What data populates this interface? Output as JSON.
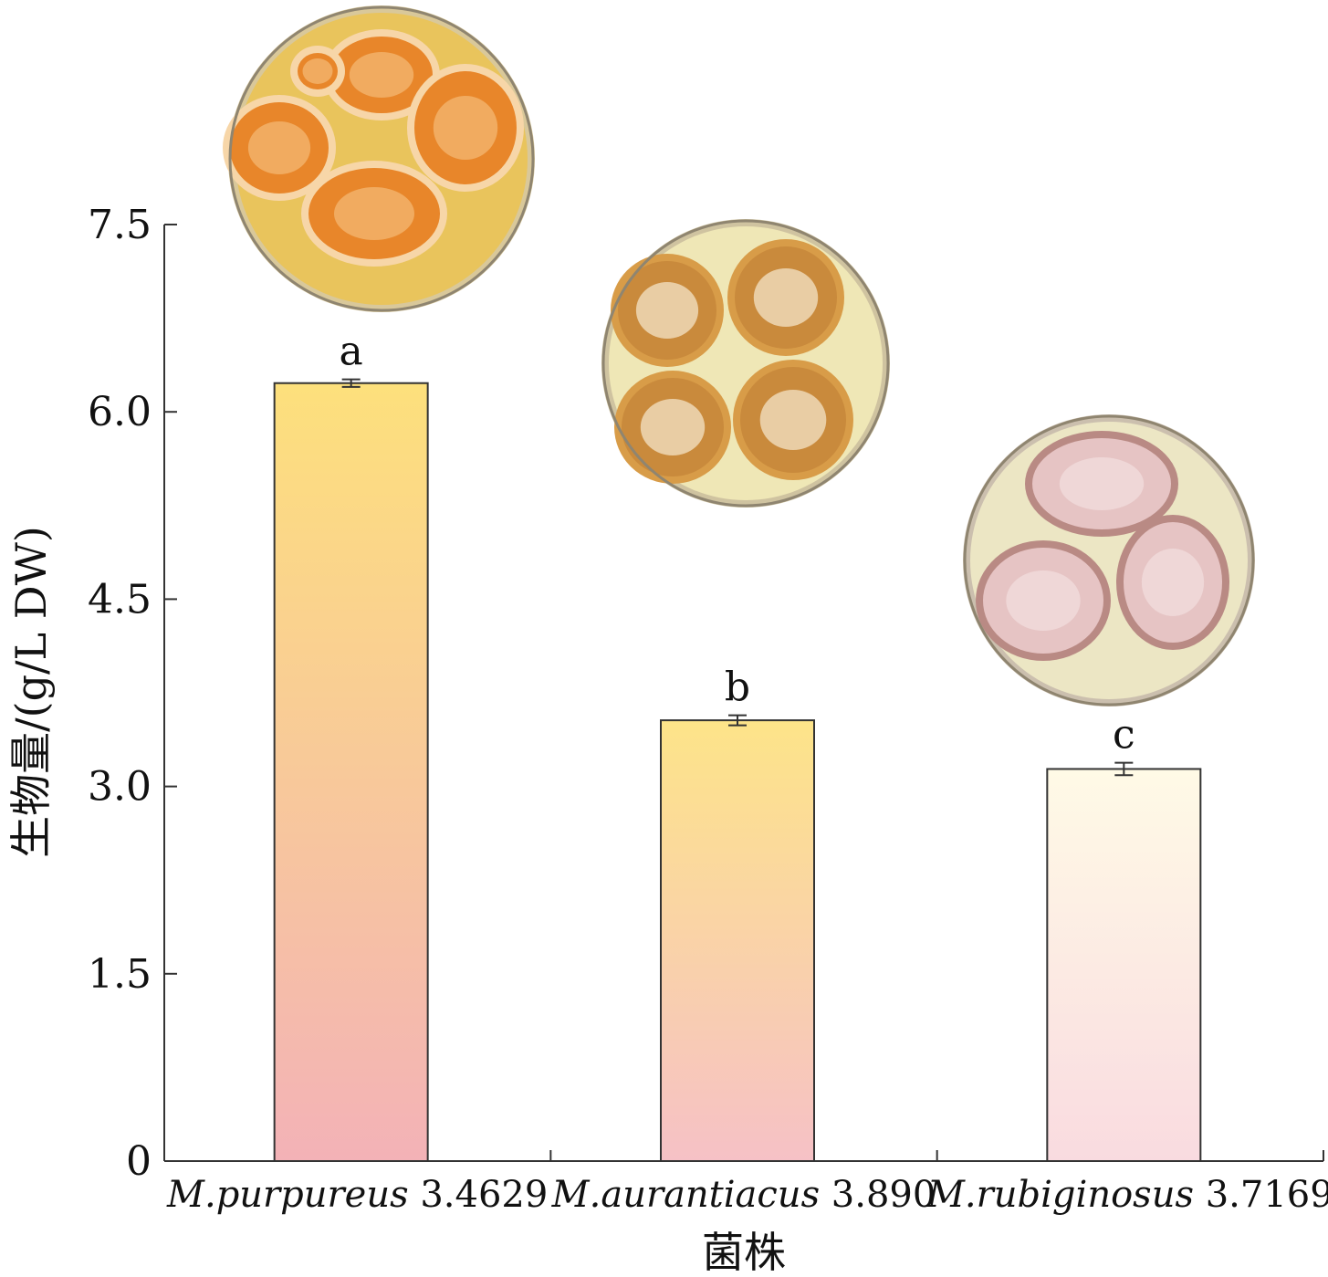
{
  "chart_data": {
    "type": "bar",
    "categories": [
      "M.purpureus 3.4629",
      "M.aurantiacus 3.890",
      "M.rubiginosus 3.7169"
    ],
    "category_parts": [
      {
        "species": "M.purpureus",
        "strain": "3.4629"
      },
      {
        "species": "M.aurantiacus",
        "strain": "3.890"
      },
      {
        "species": "M.rubiginosus",
        "strain": "3.7169"
      }
    ],
    "values": [
      6.23,
      3.53,
      3.14
    ],
    "errors": [
      0.03,
      0.04,
      0.05
    ],
    "significance": [
      "a",
      "b",
      "c"
    ],
    "xlabel": "菌株",
    "ylabel": "生物量/(g/L DW)",
    "ylim": [
      0,
      7.5
    ],
    "yticks": [
      "0",
      "1.5",
      "3.0",
      "4.5",
      "6.0",
      "7.5"
    ],
    "ytick_values": [
      0,
      1.5,
      3.0,
      4.5,
      6.0,
      7.5
    ],
    "grid": false,
    "bar_gradients": [
      {
        "top": "#fde07c",
        "bottom": "#f3b2b7"
      },
      {
        "top": "#fde489",
        "bottom": "#f6c1c6"
      },
      {
        "top": "#fffae6",
        "bottom": "#f9dbe0"
      }
    ],
    "plate_images": [
      {
        "icon": "petri-dish-orange",
        "rim": "#d9c89a",
        "agar": "#e9c45c",
        "colony": "#e8862a",
        "colony_center": "#f2b26a",
        "colony_edge": "#f7d6a8"
      },
      {
        "icon": "petri-dish-tan",
        "rim": "#cfc3a0",
        "agar": "#efe7b6",
        "colony": "#c98a3c",
        "colony_center": "#efd8b6",
        "colony_edge": "#d89c48"
      },
      {
        "icon": "petri-dish-pink",
        "rim": "#cbbfae",
        "agar": "#ece6c4",
        "colony": "#e6c4c4",
        "colony_center": "#f0dada",
        "colony_edge": "#b98a84"
      }
    ]
  }
}
